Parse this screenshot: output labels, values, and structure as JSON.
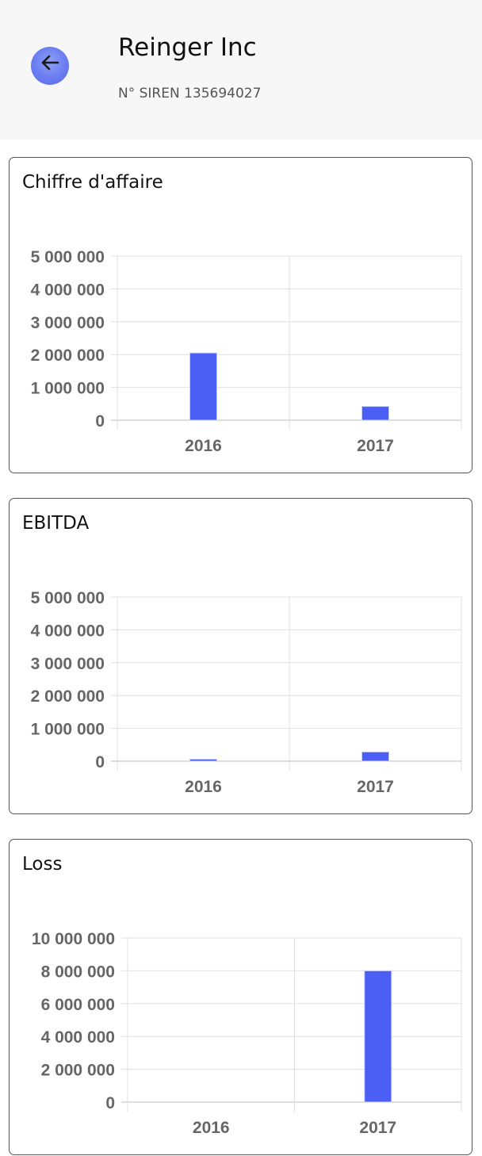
{
  "header": {
    "company_name": "Reinger Inc",
    "siren": "N° SIREN 135694027"
  },
  "colors": {
    "bar": "#4c5ff5",
    "grid": "#e0e0e0",
    "axis": "#bdbdbd",
    "header_bg": "#f7f7f7"
  },
  "chart_data": [
    {
      "type": "bar",
      "title": "Chiffre d'affaire",
      "categories": [
        "2016",
        "2017"
      ],
      "values": [
        2050000,
        420000
      ],
      "ylim": [
        0,
        5000000
      ],
      "yticks": [
        "0",
        "1 000 000",
        "2 000 000",
        "3 000 000",
        "4 000 000",
        "5 000 000"
      ],
      "grid": true,
      "legend": "none"
    },
    {
      "type": "bar",
      "title": "EBITDA",
      "categories": [
        "2016",
        "2017"
      ],
      "values": [
        60000,
        280000
      ],
      "ylim": [
        0,
        5000000
      ],
      "yticks": [
        "0",
        "1 000 000",
        "2 000 000",
        "3 000 000",
        "4 000 000",
        "5 000 000"
      ],
      "grid": true,
      "legend": "none"
    },
    {
      "type": "bar",
      "title": "Loss",
      "categories": [
        "2016",
        "2017"
      ],
      "values": [
        0,
        8000000
      ],
      "ylim": [
        0,
        10000000
      ],
      "yticks": [
        "0",
        "2 000 000",
        "4 000 000",
        "6 000 000",
        "8 000 000",
        "10 000 000"
      ],
      "grid": true,
      "legend": "none"
    }
  ]
}
